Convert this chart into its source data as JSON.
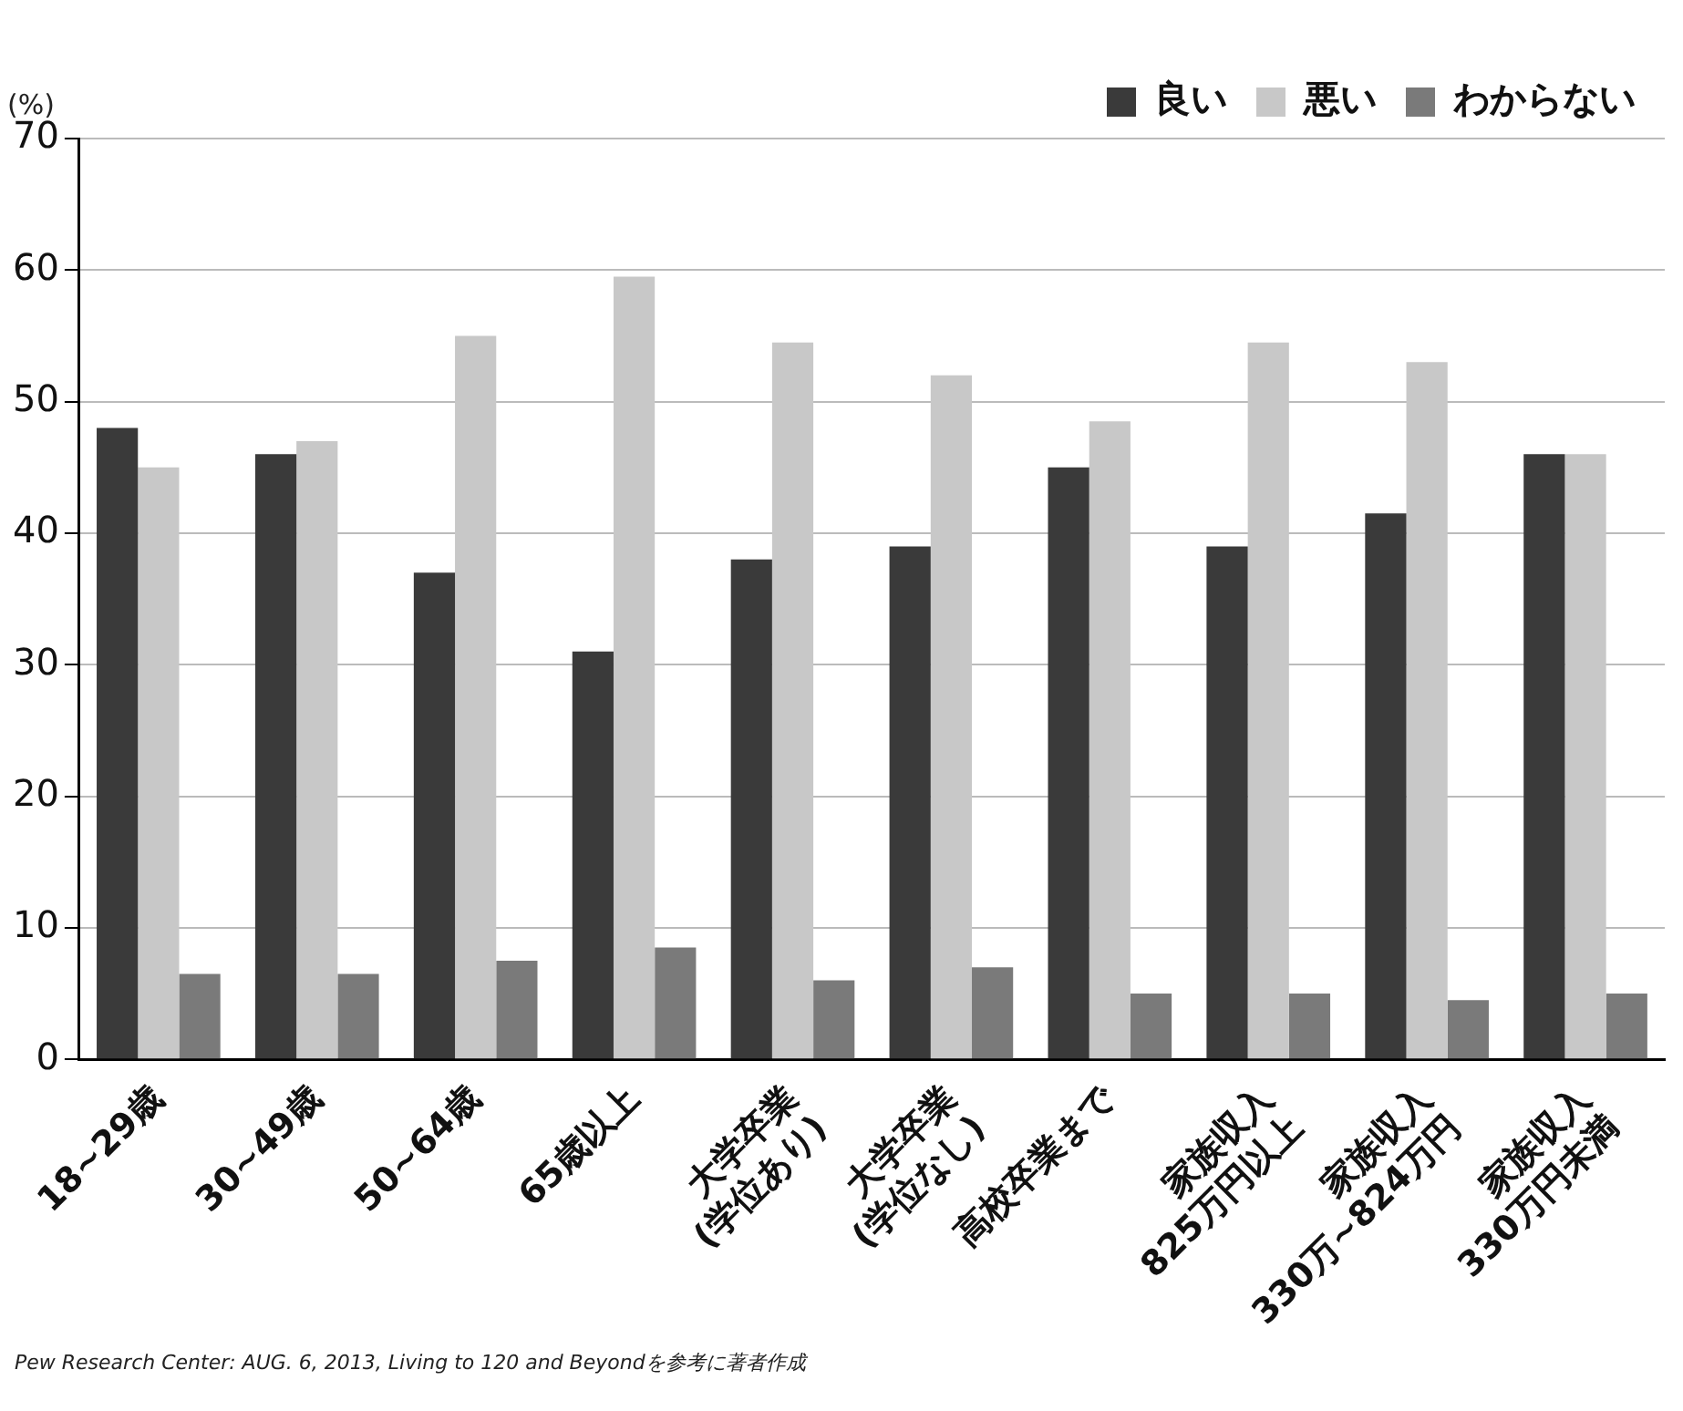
{
  "chart_data": {
    "type": "bar",
    "ylabel": "(%)",
    "categories": [
      "18~29歳",
      "30~49歳",
      "50~64歳",
      "65歳以上",
      "大学卒業\n(学位あり)",
      "大学卒業\n(学位なし)",
      "高校卒業まで",
      "家族収入\n825万円以上",
      "家族収入\n330万~824万円",
      "家族収入\n330万円未満"
    ],
    "series": [
      {
        "name": "良い",
        "color": "#3a3a3a",
        "values": [
          48,
          46,
          37,
          31,
          38,
          39,
          45,
          39,
          41.5,
          46
        ]
      },
      {
        "name": "悪い",
        "color": "#c8c8c8",
        "values": [
          45,
          47,
          55,
          59.5,
          54.5,
          52,
          48.5,
          54.5,
          53,
          46
        ]
      },
      {
        "name": "わからない",
        "color": "#7a7a7a",
        "values": [
          6.5,
          6.5,
          7.5,
          8.5,
          6,
          7,
          5,
          5,
          4.5,
          5
        ]
      }
    ],
    "ylim": [
      0,
      70
    ],
    "yticks": [
      0,
      10,
      20,
      30,
      40,
      50,
      60,
      70
    ],
    "grid": "y",
    "legend": "top right",
    "annotations": [
      "Pew Research Center: AUG. 6, 2013, Living to 120 and Beyondを参考に著者作成"
    ]
  }
}
